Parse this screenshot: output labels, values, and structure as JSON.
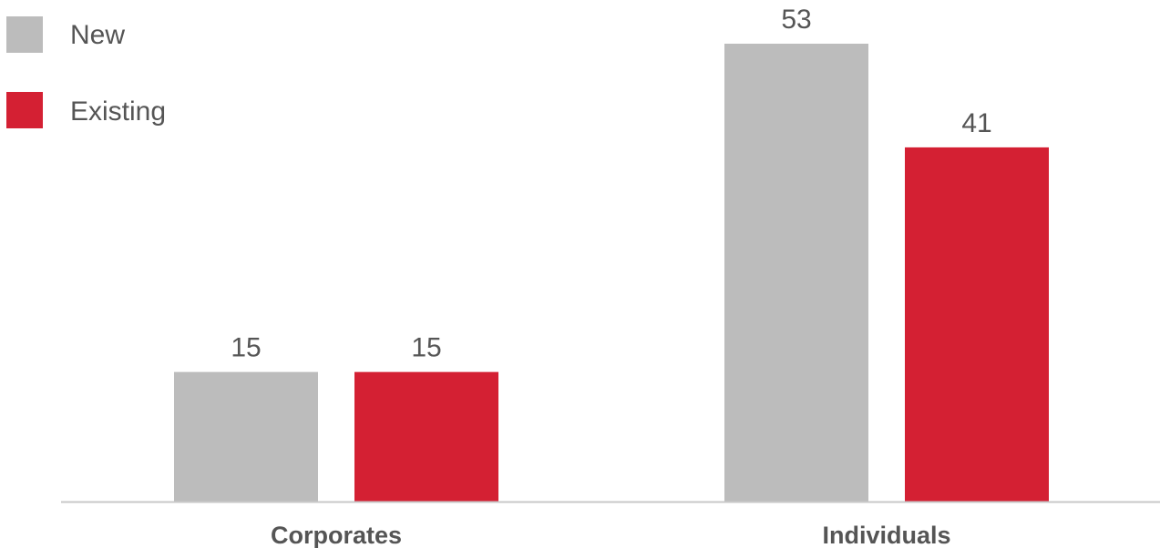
{
  "chart_data": {
    "type": "bar",
    "categories": [
      "Corporates",
      "Individuals"
    ],
    "series": [
      {
        "name": "New",
        "values": [
          15,
          53
        ],
        "color": "#bcbcbc"
      },
      {
        "name": "Existing",
        "values": [
          15,
          41
        ],
        "color": "#d42033"
      }
    ],
    "ylim": [
      0,
      53
    ],
    "grid": false,
    "legend_position": "top-left",
    "data_labels": true,
    "axis_color": "#c8c8c8",
    "text_color": "#555555"
  }
}
